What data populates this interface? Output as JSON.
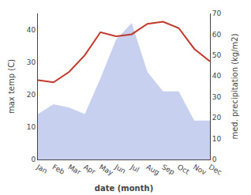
{
  "chart_data": {
    "type": "line",
    "xlabel": "date (month)",
    "ylabel": "max temp (C)",
    "y2label": "med. precipitation (kg/m2)",
    "categories": [
      "Jan",
      "Feb",
      "Mar",
      "Apr",
      "May",
      "Jun",
      "Jul",
      "Aug",
      "Sep",
      "Oct",
      "Nov",
      "Dec"
    ],
    "series": [
      {
        "type": "area",
        "color": "#c8d0f0",
        "values": [
          14,
          17,
          16,
          14,
          25,
          37,
          42,
          27,
          21,
          21,
          12,
          12
        ]
      },
      {
        "type": "line",
        "color": "#c0392b",
        "axis": "y2",
        "values": [
          38,
          37,
          42,
          50,
          61,
          59,
          60,
          65,
          66,
          63,
          53,
          47
        ]
      }
    ],
    "ylim": [
      0,
      45
    ],
    "yticks": [
      0,
      10,
      20,
      30,
      40
    ],
    "y2lim": [
      0,
      70
    ],
    "y2ticks": [
      0,
      10,
      20,
      30,
      40,
      50,
      60,
      70
    ],
    "grid": false
  }
}
